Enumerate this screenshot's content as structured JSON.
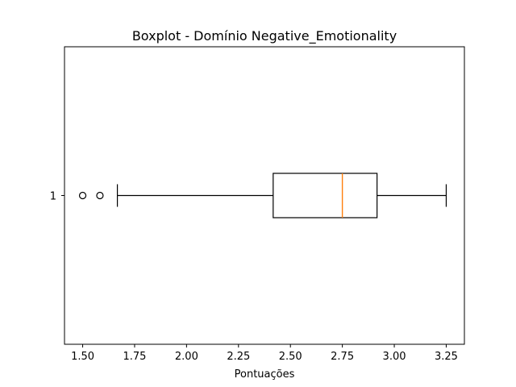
{
  "chart_data": {
    "type": "boxplot",
    "orientation": "horizontal",
    "title": "Boxplot - Domínio Negative_Emotionality",
    "xlabel": "Pontuações",
    "ylabel": "",
    "xlim": [
      1.4125,
      3.3375
    ],
    "xticks": [
      1.5,
      1.75,
      2.0,
      2.25,
      2.5,
      2.75,
      3.0,
      3.25
    ],
    "xtick_labels": [
      "1.50",
      "1.75",
      "2.00",
      "2.25",
      "2.50",
      "2.75",
      "3.00",
      "3.25"
    ],
    "categories": [
      "1"
    ],
    "boxes": [
      {
        "label": "1",
        "whisker_low": 1.667,
        "q1": 2.417,
        "median": 2.75,
        "q3": 2.917,
        "whisker_high": 3.25,
        "outliers": [
          1.5,
          1.583
        ]
      }
    ],
    "grid": false,
    "colors": {
      "box": "#000000",
      "median": "#ff7f0e",
      "background": "#ffffff"
    }
  }
}
